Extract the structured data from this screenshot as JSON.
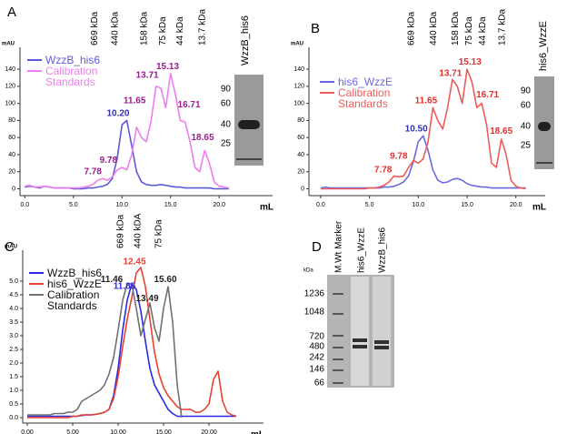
{
  "chart_data": [
    {
      "type": "line",
      "panel": "A",
      "ylabel": "mAU",
      "xlabel": "mL",
      "legend": "upper left",
      "legend_text_colored": true,
      "xlim": [
        -0.5,
        25.5
      ],
      "ylim": [
        -8,
        155
      ],
      "xticks": [
        {
          "value": 0,
          "label": "0.0"
        },
        {
          "value": 5,
          "label": "5.0"
        },
        {
          "value": 10,
          "label": "10.0"
        },
        {
          "value": 15,
          "label": "15.0"
        },
        {
          "value": 20,
          "label": "20.0"
        }
      ],
      "yticks": [
        0,
        20,
        40,
        60,
        80,
        100,
        120,
        140
      ],
      "x": [
        0,
        0.5,
        1,
        1.5,
        2,
        2.5,
        3,
        3.5,
        4,
        4.5,
        5,
        5.5,
        6,
        6.5,
        7,
        7.5,
        8,
        8.5,
        9,
        9.5,
        10,
        10.5,
        11,
        11.5,
        12,
        12.5,
        13,
        13.5,
        14,
        14.5,
        15,
        15.5,
        16,
        16.5,
        17,
        17.5,
        18,
        18.5,
        19,
        19.5,
        20,
        20.5,
        21
      ],
      "series": [
        {
          "name": "WzzB_his6",
          "color": "#5b5bd6",
          "values": [
            2,
            3,
            2,
            1,
            3,
            2,
            1,
            1,
            1,
            1,
            0,
            0,
            0,
            1,
            1,
            2,
            3,
            5,
            12,
            35,
            75,
            80,
            50,
            20,
            8,
            5,
            4,
            4,
            5,
            4,
            3,
            2,
            2,
            1,
            1,
            1,
            1,
            1,
            1,
            0,
            0,
            0,
            0
          ]
        },
        {
          "name": "Calibration Standards",
          "color": "#f07df0",
          "values": [
            3,
            4,
            2,
            2,
            3,
            2,
            1,
            1,
            1,
            1,
            1,
            1,
            2,
            3,
            5,
            10,
            12,
            10,
            14,
            22,
            25,
            22,
            40,
            72,
            60,
            55,
            80,
            120,
            118,
            95,
            135,
            110,
            80,
            78,
            55,
            25,
            20,
            45,
            30,
            8,
            3,
            2,
            1
          ]
        }
      ],
      "annotations": [
        {
          "text": "7.78",
          "x": 7.0,
          "y": 20,
          "color": "#9b1b8c"
        },
        {
          "text": "9.78",
          "x": 8.6,
          "y": 33,
          "color": "#9b1b8c"
        },
        {
          "text": "10.20",
          "x": 9.6,
          "y": 88,
          "color": "#3030b0"
        },
        {
          "text": "11.65",
          "x": 11.3,
          "y": 103,
          "color": "#9b1b8c"
        },
        {
          "text": "13.71",
          "x": 12.6,
          "y": 133,
          "color": "#9b1b8c"
        },
        {
          "text": "15.13",
          "x": 14.7,
          "y": 143,
          "color": "#9b1b8c"
        },
        {
          "text": "16.71",
          "x": 16.9,
          "y": 98,
          "color": "#9b1b8c"
        },
        {
          "text": "18.65",
          "x": 18.3,
          "y": 60,
          "color": "#9b1b8c"
        }
      ],
      "markers": [
        {
          "text": "669 kDa",
          "x": 7.2
        },
        {
          "text": "440 kDa",
          "x": 9.3
        },
        {
          "text": "158 kDa",
          "x": 12.3
        },
        {
          "text": "75 kDa",
          "x": 14.2
        },
        {
          "text": "44 kDa",
          "x": 16.0
        },
        {
          "text": "13.7 kDa",
          "x": 18.3
        }
      ]
    },
    {
      "type": "line",
      "panel": "B",
      "ylabel": "mAU",
      "xlabel": "mL",
      "legend": "upper left",
      "legend_text_colored": true,
      "xlim": [
        -1.2,
        23
      ],
      "ylim": [
        -8,
        155
      ],
      "xticks": [
        {
          "value": 0,
          "label": "0.0"
        },
        {
          "value": 5,
          "label": "5.0"
        },
        {
          "value": 10,
          "label": "10.0"
        },
        {
          "value": 15,
          "label": "15.0"
        },
        {
          "value": 20,
          "label": "20.0"
        }
      ],
      "yticks": [
        0,
        20,
        40,
        60,
        80,
        100,
        120,
        140
      ],
      "x": [
        0,
        0.5,
        1,
        1.5,
        2,
        2.5,
        3,
        3.5,
        4,
        4.5,
        5,
        5.5,
        6,
        6.5,
        7,
        7.5,
        8,
        8.5,
        9,
        9.5,
        10,
        10.5,
        11,
        11.5,
        12,
        12.5,
        13,
        13.5,
        14,
        14.5,
        15,
        15.5,
        16,
        16.5,
        17,
        17.5,
        18,
        18.5,
        19,
        19.5,
        20,
        20.5,
        21
      ],
      "series": [
        {
          "name": "his6_WzzE",
          "color": "#6a6ae0",
          "values": [
            1,
            2,
            1,
            1,
            1,
            1,
            1,
            1,
            1,
            1,
            1,
            1,
            1,
            2,
            2,
            3,
            5,
            8,
            15,
            32,
            55,
            62,
            45,
            22,
            10,
            7,
            8,
            11,
            12,
            10,
            6,
            4,
            3,
            2,
            2,
            1,
            1,
            1,
            1,
            1,
            1,
            1,
            1
          ]
        },
        {
          "name": "Calibration Standards",
          "color": "#ef5a5a",
          "values": [
            0,
            0,
            0,
            0,
            0,
            0,
            0,
            0,
            0,
            0,
            1,
            1,
            2,
            4,
            8,
            15,
            14,
            15,
            25,
            33,
            30,
            35,
            55,
            95,
            80,
            70,
            95,
            128,
            120,
            100,
            140,
            125,
            95,
            100,
            75,
            30,
            25,
            58,
            40,
            10,
            3,
            1,
            0
          ]
        }
      ],
      "annotations": [
        {
          "text": "7.78",
          "x": 6.4,
          "y": 22,
          "color": "#e03030"
        },
        {
          "text": "9.78",
          "x": 8.0,
          "y": 38,
          "color": "#e03030"
        },
        {
          "text": "10.50",
          "x": 9.8,
          "y": 70,
          "color": "#3030b0"
        },
        {
          "text": "11.65",
          "x": 10.8,
          "y": 103,
          "color": "#e03030"
        },
        {
          "text": "13.71",
          "x": 13.3,
          "y": 135,
          "color": "#e03030"
        },
        {
          "text": "15.13",
          "x": 15.3,
          "y": 148,
          "color": "#e03030"
        },
        {
          "text": "16.71",
          "x": 17.1,
          "y": 110,
          "color": "#e03030"
        },
        {
          "text": "18.65",
          "x": 18.5,
          "y": 67,
          "color": "#e03030"
        }
      ],
      "markers": [
        {
          "text": "669 kDa",
          "x": 9.3
        },
        {
          "text": "440 kDa",
          "x": 11.6
        },
        {
          "text": "158 kDa",
          "x": 13.8
        },
        {
          "text": "75 kDa",
          "x": 15.2
        },
        {
          "text": "44 kDa",
          "x": 16.6
        },
        {
          "text": "13.7 kDa",
          "x": 18.6
        }
      ]
    },
    {
      "type": "line",
      "panel": "C",
      "ylabel": "mAU",
      "xlabel": "mL",
      "legend": "upper left",
      "legend_text_colored": false,
      "xlim": [
        -0.5,
        26
      ],
      "ylim": [
        -0.2,
        5.8
      ],
      "xticks": [
        {
          "value": 0,
          "label": "0.00"
        },
        {
          "value": 5,
          "label": "5.00"
        },
        {
          "value": 10,
          "label": "10.00"
        },
        {
          "value": 15,
          "label": "15.00"
        },
        {
          "value": 20,
          "label": "20.00"
        }
      ],
      "yticks": [
        {
          "value": 0,
          "label": "0.0"
        },
        0.5,
        {
          "value": 1,
          "label": "1.0"
        },
        1.5,
        {
          "value": 2,
          "label": "2.0"
        },
        2.5,
        {
          "value": 3,
          "label": "3.0"
        },
        3.5,
        {
          "value": 4,
          "label": "4.0"
        },
        4.5,
        {
          "value": 5,
          "label": "5.0"
        }
      ],
      "x": [
        0,
        0.5,
        1,
        1.5,
        2,
        2.5,
        3,
        3.5,
        4,
        4.5,
        5,
        5.5,
        6,
        6.5,
        7,
        7.5,
        8,
        8.5,
        9,
        9.5,
        10,
        10.5,
        11,
        11.5,
        12,
        12.5,
        13,
        13.5,
        14,
        14.5,
        15,
        15.5,
        16,
        16.5,
        17,
        17.5,
        18,
        18.5,
        19,
        19.5,
        20,
        20.5,
        21,
        21.5,
        22,
        22.5,
        23
      ],
      "series": [
        {
          "name": "WzzB_his6",
          "color": "#2a2ae6",
          "values": [
            0.05,
            0.05,
            0.05,
            0.05,
            0.05,
            0.05,
            0.05,
            0.05,
            0.05,
            0.05,
            0.05,
            0.05,
            0.08,
            0.1,
            0.1,
            0.12,
            0.15,
            0.2,
            0.3,
            0.8,
            1.8,
            3.2,
            4.3,
            4.9,
            4.7,
            3.9,
            2.8,
            1.8,
            1.2,
            0.9,
            0.6,
            0.3,
            0.15,
            0.05,
            0.05,
            0.05,
            0.05,
            0.05,
            0.05,
            0.05,
            0.05,
            0.05,
            0.05,
            0.05,
            0.05,
            0.05,
            0.05
          ]
        },
        {
          "name": "his6_WzzE",
          "color": "#e84030",
          "values": [
            0.0,
            0.0,
            0.0,
            0.0,
            0.0,
            0.0,
            0.0,
            0.0,
            0.0,
            0.0,
            0.05,
            0.05,
            0.1,
            0.1,
            0.1,
            0.12,
            0.15,
            0.2,
            0.3,
            0.7,
            1.5,
            2.6,
            3.6,
            4.4,
            5.3,
            5.5,
            4.8,
            3.6,
            2.4,
            1.6,
            1.1,
            0.8,
            0.6,
            0.4,
            0.3,
            0.3,
            0.3,
            0.2,
            0.2,
            0.3,
            0.5,
            1.4,
            1.7,
            0.6,
            0.2,
            0.1,
            0.05
          ]
        },
        {
          "name": "Calibration Standards",
          "color": "#707070",
          "values": [
            0.1,
            0.1,
            0.1,
            0.1,
            0.1,
            0.1,
            0.15,
            0.15,
            0.15,
            0.2,
            0.2,
            0.3,
            0.6,
            0.7,
            0.8,
            0.9,
            1.0,
            1.2,
            1.6,
            2.2,
            3.2,
            4.3,
            4.9,
            4.9,
            4.0,
            3.0,
            3.6,
            4.2,
            3.3,
            2.8,
            4.0,
            4.8,
            3.5,
            1.2,
            0.0,
            null,
            null,
            null,
            null,
            null,
            null,
            null,
            null,
            null,
            null,
            null,
            null
          ]
        }
      ],
      "annotations": [
        {
          "text": "11.46",
          "x": 9.3,
          "y": 5.05,
          "color": "#222222"
        },
        {
          "text": "11.85",
          "x": 10.7,
          "y": 4.8,
          "color": "#2a2ae6"
        },
        {
          "text": "12.45",
          "x": 11.8,
          "y": 5.7,
          "color": "#e84030"
        },
        {
          "text": "13.49",
          "x": 13.2,
          "y": 4.35,
          "color": "#222222"
        },
        {
          "text": "15.60",
          "x": 15.2,
          "y": 5.05,
          "color": "#222222"
        }
      ],
      "markers": [
        {
          "text": "669 kDa",
          "x": 10.3
        },
        {
          "text": "440 kDA",
          "x": 12.2
        },
        {
          "text": "75 kDa",
          "x": 14.5
        }
      ]
    }
  ],
  "insets": [
    {
      "label": "WzzB_his6",
      "markers": [
        90,
        60,
        40,
        25
      ]
    },
    {
      "label": "his6_WzzE",
      "markers": [
        90,
        60,
        40,
        25
      ]
    }
  ],
  "panel_d": {
    "panel": "D",
    "unit": "kDa",
    "lanes": [
      "M.Wt Marker",
      "his6_WzzE",
      "WzzB_his6"
    ],
    "markers": [
      1236,
      1048,
      720,
      480,
      242,
      146,
      66
    ]
  }
}
